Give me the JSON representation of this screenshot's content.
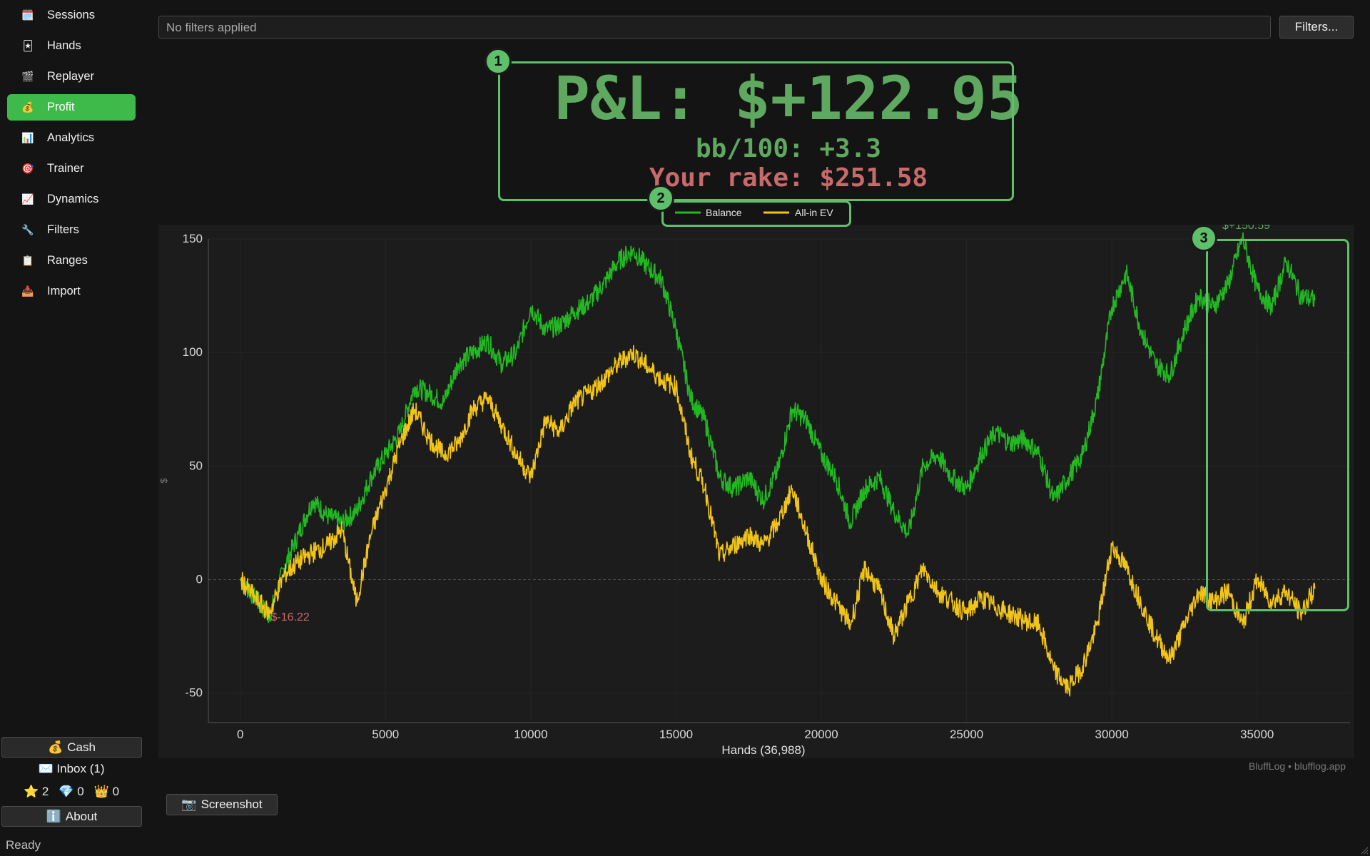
{
  "sidebar": {
    "items": [
      {
        "label": "Sessions",
        "icon": "calendar-icon",
        "glyph": "🗓️",
        "active": false
      },
      {
        "label": "Hands",
        "icon": "card-icon",
        "glyph": "🃏",
        "active": false
      },
      {
        "label": "Replayer",
        "icon": "clapper-icon",
        "glyph": "🎬",
        "active": false
      },
      {
        "label": "Profit",
        "icon": "money-bag-icon",
        "glyph": "💰",
        "active": true
      },
      {
        "label": "Analytics",
        "icon": "bar-chart-icon",
        "glyph": "📊",
        "active": false
      },
      {
        "label": "Trainer",
        "icon": "target-icon",
        "glyph": "🎯",
        "active": false
      },
      {
        "label": "Dynamics",
        "icon": "line-chart-icon",
        "glyph": "📈",
        "active": false
      },
      {
        "label": "Filters",
        "icon": "wrench-icon",
        "glyph": "🔧",
        "active": false
      },
      {
        "label": "Ranges",
        "icon": "clipboard-icon",
        "glyph": "📋",
        "active": false
      },
      {
        "label": "Import",
        "icon": "inbox-tray-icon",
        "glyph": "📥",
        "active": false
      }
    ],
    "cash_label": "Cash",
    "cash_glyph": "💰",
    "inbox_label": "Inbox",
    "inbox_count": "(1)",
    "inbox_glyph": "✉️",
    "stars": "2",
    "diamonds": "0",
    "crowns": "0",
    "about_label": "About",
    "about_glyph": "ℹ️"
  },
  "filter_bar": {
    "text": "No filters applied",
    "button_label": "Filters..."
  },
  "summary": {
    "pnl": "P&L: $+122.95",
    "bb100": "bb/100: +3.3",
    "rake": "Your rake: $251.58"
  },
  "annotations": [
    "1",
    "2",
    "3"
  ],
  "chart_labels": {
    "min_label": "$-16.22",
    "max_label": "$+150.59"
  },
  "footer": {
    "brand": "BluffLog • blufflog.app",
    "screenshot_label": "Screenshot",
    "screenshot_glyph": "📷",
    "status": "Ready"
  },
  "colors": {
    "accent": "#3dba4a",
    "balance": "#22b822",
    "allin_ev": "#f2c418",
    "pnl_text": "#5fa85f",
    "rake_text": "#c76a6a",
    "annotation": "#5fc06b"
  },
  "chart_data": {
    "type": "line",
    "title": "",
    "xlabel": "Hands (36,988)",
    "ylabel": "$",
    "xlim": [
      -1100,
      38200
    ],
    "ylim": [
      -63,
      150
    ],
    "x_ticks": [
      0,
      5000,
      10000,
      15000,
      20000,
      25000,
      30000,
      35000
    ],
    "y_ticks": [
      -50,
      0,
      50,
      100,
      150
    ],
    "grid": true,
    "legend_placement": "top-center",
    "series": [
      {
        "name": "Balance",
        "color": "#22b822",
        "x": [
          0,
          500,
          1000,
          1500,
          2000,
          2500,
          3000,
          3500,
          4000,
          4500,
          5000,
          5500,
          6000,
          6500,
          7000,
          7500,
          8000,
          8500,
          9000,
          9500,
          10000,
          10500,
          11000,
          11500,
          12000,
          12500,
          13000,
          13500,
          14000,
          14500,
          15000,
          15500,
          16000,
          16500,
          17000,
          17500,
          18000,
          18500,
          19000,
          19500,
          20000,
          20500,
          21000,
          21500,
          22000,
          22500,
          23000,
          23500,
          24000,
          24500,
          25000,
          25500,
          26000,
          26500,
          27000,
          27500,
          28000,
          28500,
          29000,
          29500,
          30000,
          30500,
          31000,
          31500,
          32000,
          32500,
          33000,
          33500,
          34000,
          34500,
          35000,
          35500,
          36000,
          36500,
          36988
        ],
        "values": [
          0,
          -8,
          -16.2,
          5,
          20,
          35,
          28,
          25,
          30,
          45,
          55,
          65,
          85,
          82,
          78,
          95,
          100,
          105,
          95,
          100,
          120,
          110,
          112,
          118,
          122,
          130,
          140,
          145,
          138,
          132,
          110,
          80,
          70,
          45,
          40,
          45,
          35,
          48,
          75,
          70,
          55,
          45,
          25,
          40,
          45,
          30,
          20,
          50,
          55,
          45,
          40,
          55,
          65,
          60,
          62,
          55,
          35,
          45,
          55,
          80,
          120,
          135,
          110,
          95,
          90,
          110,
          125,
          120,
          130,
          150.59,
          128,
          120,
          140,
          125,
          122.95
        ]
      },
      {
        "name": "All-in EV",
        "color": "#f2c418",
        "x": [
          0,
          500,
          1000,
          1500,
          2000,
          2500,
          3000,
          3500,
          4000,
          4500,
          5000,
          5500,
          6000,
          6500,
          7000,
          7500,
          8000,
          8500,
          9000,
          9500,
          10000,
          10500,
          11000,
          11500,
          12000,
          12500,
          13000,
          13500,
          14000,
          14500,
          15000,
          15500,
          16000,
          16500,
          17000,
          17500,
          18000,
          18500,
          19000,
          19500,
          20000,
          20500,
          21000,
          21500,
          22000,
          22500,
          23000,
          23500,
          24000,
          24500,
          25000,
          25500,
          26000,
          26500,
          27000,
          27500,
          28000,
          28500,
          29000,
          29500,
          30000,
          30500,
          31000,
          31500,
          32000,
          32500,
          33000,
          33500,
          34000,
          34500,
          35000,
          35500,
          36000,
          36500,
          36988
        ],
        "values": [
          0,
          -8,
          -15,
          2,
          8,
          12,
          15,
          22,
          -10,
          20,
          40,
          60,
          75,
          62,
          55,
          60,
          75,
          80,
          68,
          55,
          45,
          70,
          65,
          78,
          82,
          88,
          95,
          100,
          94,
          88,
          85,
          55,
          40,
          10,
          15,
          20,
          15,
          25,
          40,
          20,
          0,
          -10,
          -20,
          5,
          -5,
          -25,
          -10,
          5,
          -5,
          -10,
          -15,
          -8,
          -12,
          -15,
          -18,
          -20,
          -40,
          -48,
          -38,
          -20,
          15,
          5,
          -10,
          -25,
          -35,
          -20,
          -5,
          -10,
          -5,
          -20,
          0,
          -10,
          -5,
          -15,
          -4
        ]
      }
    ]
  }
}
